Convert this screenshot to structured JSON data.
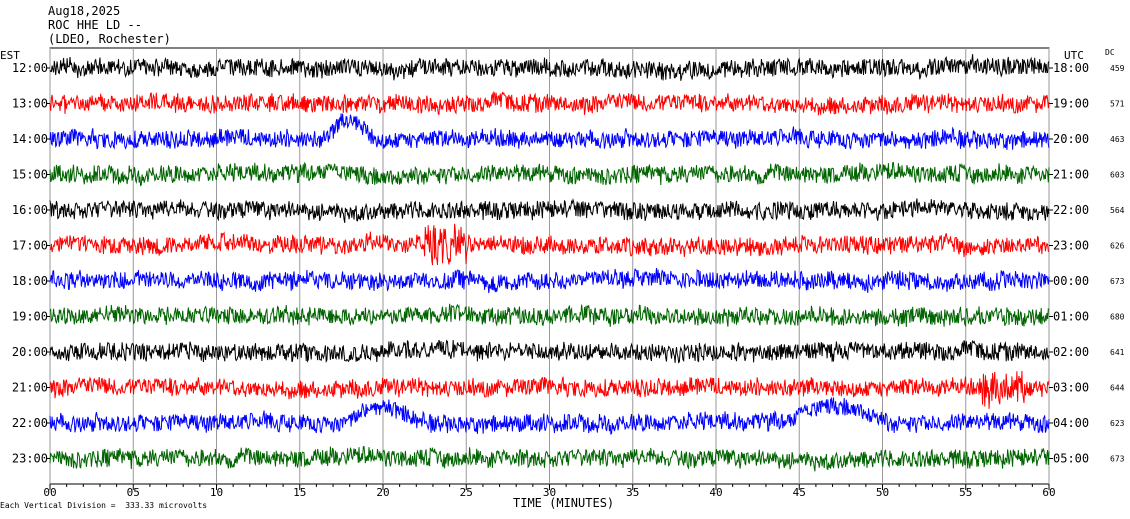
{
  "header": {
    "date": "Aug18,2025",
    "station": "ROC HHE LD --",
    "network": "(LDEO, Rochester)"
  },
  "left_axis_title": "EST",
  "right_axis_title": "UTC",
  "dc_title": "DC",
  "footer": "Each Vertical Division =  333.33 microvolts",
  "chart_data": {
    "type": "line",
    "title": "Aug18,2025",
    "xlabel": "TIME (MINUTES)",
    "xlim": [
      0,
      60
    ],
    "x_ticks": [
      "00",
      "05",
      "10",
      "15",
      "20",
      "25",
      "30",
      "35",
      "40",
      "45",
      "50",
      "55",
      "60"
    ],
    "grid_vertical": true,
    "rows": [
      {
        "est": "12:00",
        "utc": "18:00",
        "dc": "459",
        "color": "#000000"
      },
      {
        "est": "13:00",
        "utc": "19:00",
        "dc": "571",
        "color": "#ff0000"
      },
      {
        "est": "14:00",
        "utc": "20:00",
        "dc": "463",
        "color": "#0000ff"
      },
      {
        "est": "15:00",
        "utc": "21:00",
        "dc": "603",
        "color": "#006400"
      },
      {
        "est": "16:00",
        "utc": "22:00",
        "dc": "564",
        "color": "#000000"
      },
      {
        "est": "17:00",
        "utc": "23:00",
        "dc": "626",
        "color": "#ff0000"
      },
      {
        "est": "18:00",
        "utc": "00:00",
        "dc": "673",
        "color": "#0000ff"
      },
      {
        "est": "19:00",
        "utc": "01:00",
        "dc": "680",
        "color": "#006400"
      },
      {
        "est": "20:00",
        "utc": "02:00",
        "dc": "641",
        "color": "#000000"
      },
      {
        "est": "21:00",
        "utc": "03:00",
        "dc": "644",
        "color": "#ff0000"
      },
      {
        "est": "22:00",
        "utc": "04:00",
        "dc": "623",
        "color": "#0000ff"
      },
      {
        "est": "23:00",
        "utc": "05:00",
        "dc": "673",
        "color": "#006400"
      }
    ],
    "events_minutes": [
      {
        "row": 2,
        "start": 16.5,
        "end": 19.5,
        "note": "blue excursion"
      },
      {
        "row": 5,
        "start": 22.5,
        "end": 25.0,
        "note": "red burst"
      },
      {
        "row": 9,
        "start": 56.0,
        "end": 58.5,
        "note": "red burst"
      },
      {
        "row": 10,
        "start": 17.8,
        "end": 22.0,
        "note": "blue drift"
      },
      {
        "row": 10,
        "start": 44.5,
        "end": 50.5,
        "note": "blue swings"
      }
    ]
  }
}
